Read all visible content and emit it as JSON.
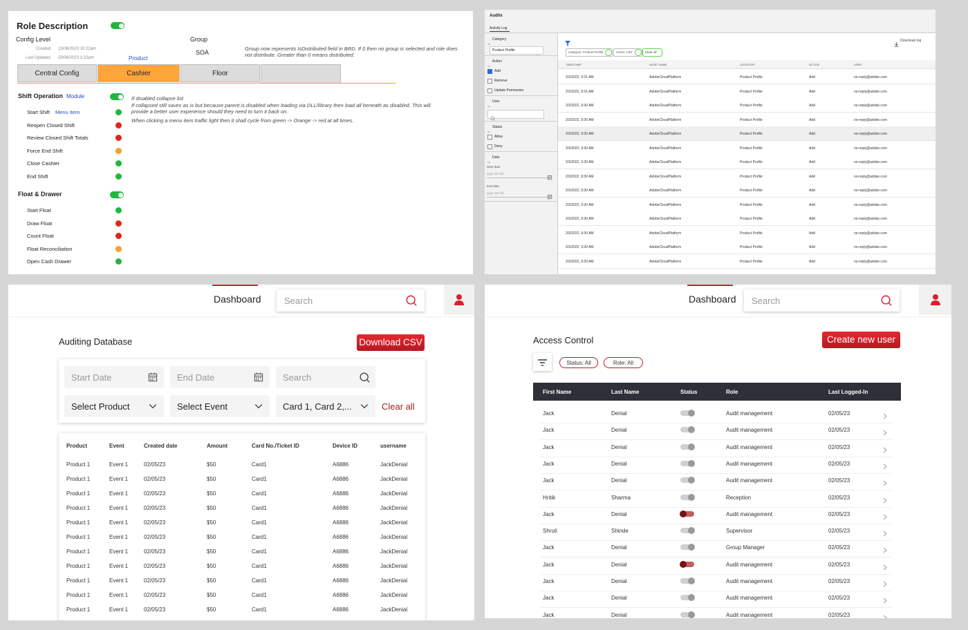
{
  "role_panel": {
    "title": "Role Description",
    "enabled": true,
    "config_level_label": "Config Level",
    "created_label": "Created",
    "created": "13/06/2023 10:22am",
    "updated_label": "Last Updated",
    "updated": "20/06/2023 1:22pm",
    "product_link": "Product",
    "group_label": "Group",
    "group": "SOA",
    "group_note": "Group now represents IsDistributed field in BRD. If 0 then no group is selected and role does not distribute. Greater than 0 means distributed.",
    "tabs": [
      "Central Config",
      "Cashier",
      "Floor"
    ],
    "active_tab": 1,
    "sections": [
      {
        "title": "Shift Operation",
        "tag": "Module",
        "enabled": true,
        "items": [
          {
            "label": "Start Shift",
            "tag": "Menu Item",
            "color": "#1fb83c"
          },
          {
            "label": "Reopen Closed Shift",
            "color": "#e3241b"
          },
          {
            "label": "Review Closed Shift Totals",
            "color": "#e3241b"
          },
          {
            "label": "Force End Shift",
            "color": "#f5a030"
          },
          {
            "label": "Close Cashier",
            "color": "#1fb83c"
          },
          {
            "label": "End Shift",
            "color": "#1fb83c"
          }
        ]
      },
      {
        "title": "Float & Drawer",
        "enabled": true,
        "items": [
          {
            "label": "Start Float",
            "color": "#1fb83c"
          },
          {
            "label": "Draw Float",
            "color": "#e3241b"
          },
          {
            "label": "Count Float",
            "color": "#e3241b"
          },
          {
            "label": "Float Reconciliation",
            "color": "#f5a030"
          },
          {
            "label": "Open Cash Drawer",
            "color": "#1fb83c"
          }
        ]
      }
    ],
    "notes": [
      "If disabled collapse list",
      "If collapsed still saves as is but because parent is disabled  when loading via DLL/library then load all beneath as disabled. This will provide a better user experience should they need to turn it back on.",
      "When clicking a menu item traffic light then it shall cycle from green -> Orange -> red at all times."
    ]
  },
  "audits_panel": {
    "title": "Audits",
    "tab": "Activity Log",
    "filters": [
      {
        "label": "Category",
        "select": "Product Profile"
      },
      {
        "label": "Action",
        "options": [
          {
            "label": "Add",
            "checked": true
          },
          {
            "label": "Remove",
            "checked": false
          },
          {
            "label": "Update Permission",
            "checked": false
          }
        ]
      },
      {
        "label": "User",
        "search": true
      },
      {
        "label": "Status",
        "options": [
          {
            "label": "Allow",
            "checked": false
          },
          {
            "label": "Deny",
            "checked": false
          }
        ]
      },
      {
        "label": "Date",
        "dates": [
          {
            "label": "Start date",
            "placeholder": "yyyy-mm-dd"
          },
          {
            "label": "End date",
            "placeholder": "yyyy-mm-dd"
          }
        ]
      }
    ],
    "chips": [
      "Category: Product Profile",
      "Action: Add"
    ],
    "clear": "Clear all",
    "download": "Download log",
    "columns": [
      "TIMESTAMP",
      "ASSET NAME",
      "CATEGORY",
      "ACTION",
      "USER"
    ],
    "rows": [
      [
        "2/3/2022, 9:31 AM",
        "AdobeCloudPlatform",
        "Product Profile",
        "Add",
        "no-reply@adobe.com"
      ],
      [
        "2/3/2022, 9:31 AM",
        "AdobeCloudPlatform",
        "Product Profile",
        "Add",
        "no-reply@adobe.com"
      ],
      [
        "2/3/2022, 9:30 AM",
        "AdobeCloudPlatform",
        "Product Profile",
        "Add",
        "no-reply@adobe.com"
      ],
      [
        "2/3/2022, 9:30 AM",
        "AdobeCloudPlatform",
        "Product Profile",
        "Add",
        "no-reply@adobe.com"
      ],
      [
        "2/3/2022, 9:30 AM",
        "AdobeCloudPlatform",
        "Product Profile",
        "Add",
        "no-reply@adobe.com"
      ],
      [
        "2/3/2022, 9:30 AM",
        "AdobeCloudPlatform",
        "Product Profile",
        "Add",
        "no-reply@adobe.com"
      ],
      [
        "2/3/2022, 9:30 AM",
        "AdobeCloudPlatform",
        "Product Profile",
        "Add",
        "no-reply@adobe.com"
      ],
      [
        "2/3/2022, 9:30 AM",
        "AdobeCloudPlatform",
        "Product Profile",
        "Add",
        "no-reply@adobe.com"
      ],
      [
        "2/3/2022, 9:30 AM",
        "AdobeCloudPlatform",
        "Product Profile",
        "Add",
        "no-reply@adobe.com"
      ],
      [
        "2/3/2022, 9:30 AM",
        "AdobeCloudPlatform",
        "Product Profile",
        "Add",
        "no-reply@adobe.com"
      ],
      [
        "2/3/2022, 9:30 AM",
        "AdobeCloudPlatform",
        "Product Profile",
        "Add",
        "no-reply@adobe.com"
      ],
      [
        "2/3/2022, 9:30 AM",
        "AdobeCloudPlatform",
        "Product Profile",
        "Add",
        "no-reply@adobe.com"
      ],
      [
        "2/3/2022, 9:30 AM",
        "AdobeCloudPlatform",
        "Product Profile",
        "Add",
        "no-reply@adobe.com"
      ],
      [
        "2/3/2022, 9:29 AM",
        "AdobeCloudPlatform",
        "Product Profile",
        "Add",
        "no-reply@adobe.com"
      ]
    ]
  },
  "auditing_panel": {
    "nav": {
      "tab": "Dashboard",
      "search": "Search"
    },
    "title": "Auditing Database",
    "button": "Download CSV",
    "filters": {
      "start": "Start Date",
      "end": "End Date",
      "search": "Search",
      "product": "Select Product",
      "event": "Select Event",
      "cards": "Card 1, Card 2,...",
      "clear": "Clear all"
    },
    "columns": [
      "Product",
      "Event",
      "Created  date",
      "Amount",
      "Card No./Ticket ID",
      "Device ID",
      "username"
    ],
    "rows": [
      [
        "Product 1",
        "Event 1",
        "02/05/23",
        "$50",
        "Card1",
        "A6886",
        "JackDenial"
      ],
      [
        "Product 1",
        "Event 1",
        "02/05/23",
        "$50",
        "Card1",
        "A6886",
        "JackDenial"
      ],
      [
        "Product 1",
        "Event 1",
        "02/05/23",
        "$50",
        "Card1",
        "A6886",
        "JackDenial"
      ],
      [
        "Product 1",
        "Event 1",
        "02/05/23",
        "$50",
        "Card1",
        "A6886",
        "JackDenial"
      ],
      [
        "Product 1",
        "Event 1",
        "02/05/23",
        "$50",
        "Card1",
        "A6886",
        "JackDenial"
      ],
      [
        "Product 1",
        "Event 1",
        "02/05/23",
        "$50",
        "Card1",
        "A6886",
        "JackDenial"
      ],
      [
        "Product 1",
        "Event 1",
        "02/05/23",
        "$50",
        "Card1",
        "A6886",
        "JackDenial"
      ],
      [
        "Product 1",
        "Event 1",
        "02/05/23",
        "$50",
        "Card1",
        "A6886",
        "JackDenial"
      ],
      [
        "Product 1",
        "Event 1",
        "02/05/23",
        "$50",
        "Card1",
        "A6886",
        "JackDenial"
      ],
      [
        "Product 1",
        "Event 1",
        "02/05/23",
        "$50",
        "Card1",
        "A6886",
        "JackDenial"
      ],
      [
        "Product 1",
        "Event 1",
        "02/05/23",
        "$50",
        "Card1",
        "A6886",
        "JackDenial"
      ]
    ]
  },
  "access_panel": {
    "nav": {
      "tab": "Dashboard",
      "search": "Search"
    },
    "title": "Access Control",
    "button": "Create new user",
    "chips": [
      "Status: All",
      "Role: All"
    ],
    "columns": [
      "First Name",
      "Last Name",
      "Status",
      "Role",
      "Last Logged-In"
    ],
    "rows": [
      {
        "first": "Jack",
        "last": "Denial",
        "active": false,
        "role": "Audit management",
        "login": "02/05/23"
      },
      {
        "first": "Jack",
        "last": "Denial",
        "active": false,
        "role": "Audit management",
        "login": "02/05/23"
      },
      {
        "first": "Jack",
        "last": "Denial",
        "active": false,
        "role": "Audit management",
        "login": "02/05/23"
      },
      {
        "first": "Jack",
        "last": "Denial",
        "active": false,
        "role": "Audit management",
        "login": "02/05/23"
      },
      {
        "first": "Jack",
        "last": "Denial",
        "active": false,
        "role": "Audit management",
        "login": "02/05/23"
      },
      {
        "first": "Hritik",
        "last": "Sharma",
        "active": false,
        "role": "Reception",
        "login": "02/05/23"
      },
      {
        "first": "Jack",
        "last": "Denial",
        "active": true,
        "role": "Audit management",
        "login": "02/05/23"
      },
      {
        "first": "Shruti",
        "last": "Shinde",
        "active": false,
        "role": "Supervisor",
        "login": "02/05/23"
      },
      {
        "first": "Jack",
        "last": "Denial",
        "active": false,
        "role": "Group Manager",
        "login": "02/05/23"
      },
      {
        "first": "Jack",
        "last": "Denial",
        "active": true,
        "role": "Audit management",
        "login": "02/05/23"
      },
      {
        "first": "Jack",
        "last": "Denial",
        "active": false,
        "role": "Audit management",
        "login": "02/05/23"
      },
      {
        "first": "Jack",
        "last": "Denial",
        "active": false,
        "role": "Audit management",
        "login": "02/05/23"
      },
      {
        "first": "Jack",
        "last": "Denial",
        "active": false,
        "role": "Audit management",
        "login": "02/05/23"
      }
    ]
  }
}
